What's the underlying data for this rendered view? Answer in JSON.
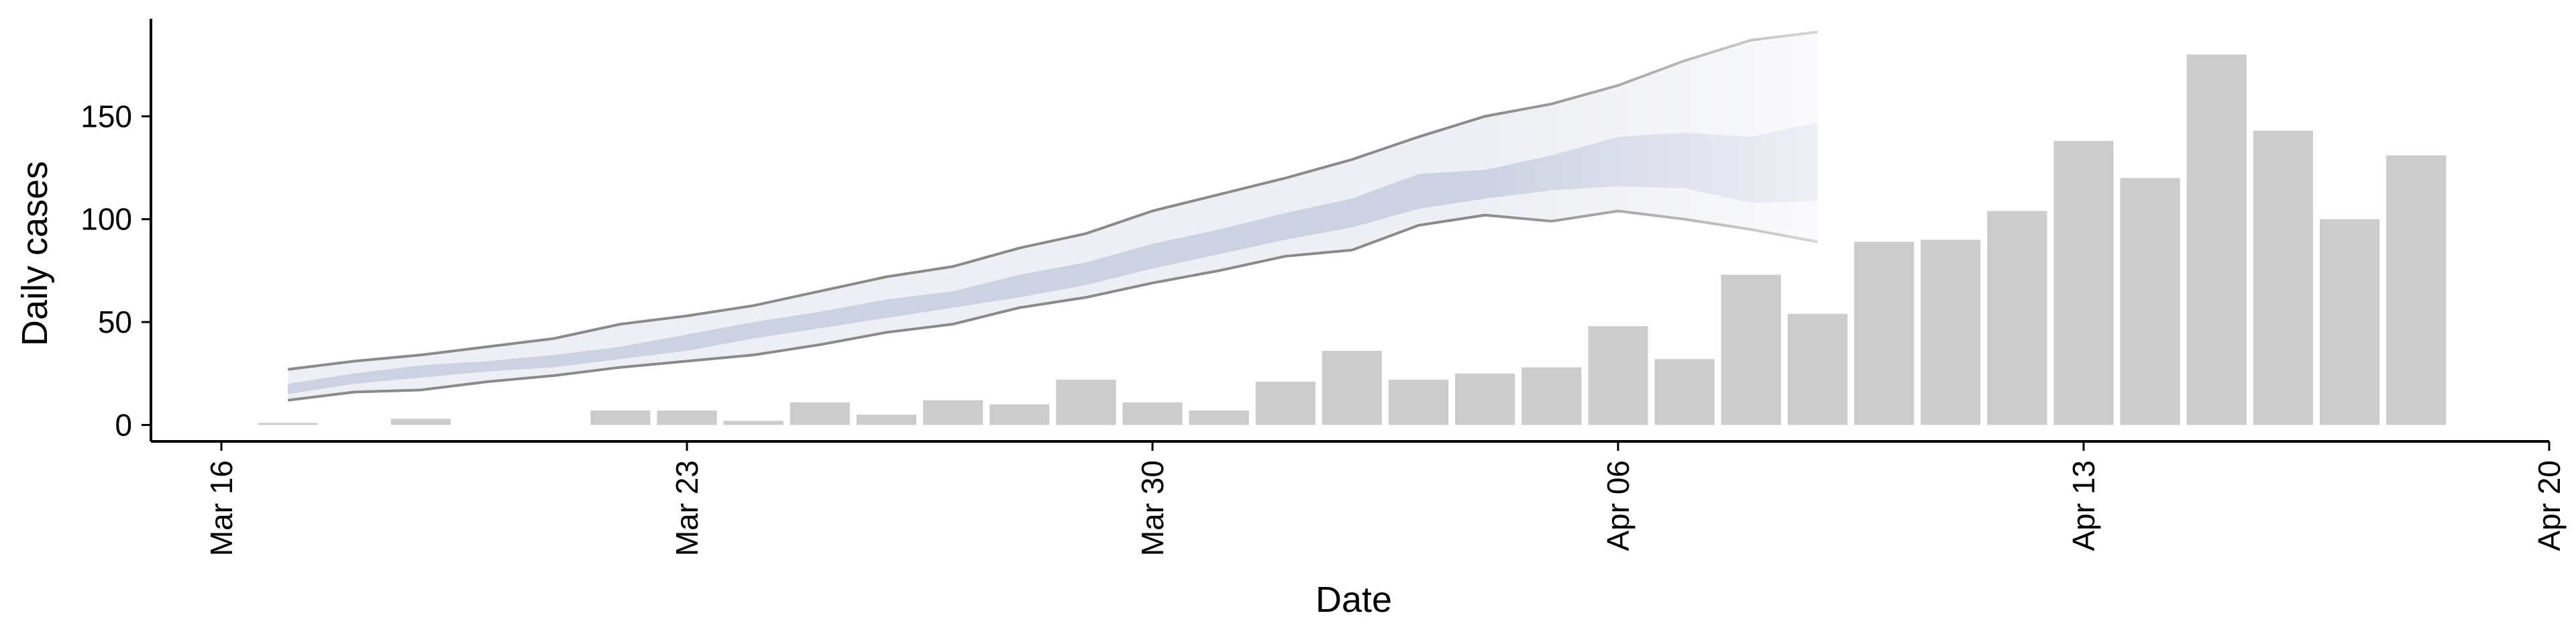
{
  "chart_data": {
    "type": "bar",
    "xlabel": "Date",
    "ylabel": "Daily cases",
    "xlim": [
      "2020-03-16",
      "2020-04-20"
    ],
    "ylim": [
      -8,
      200
    ],
    "x_ticks": [
      {
        "date": "2020-03-16",
        "label": "Mar 16"
      },
      {
        "date": "2020-03-23",
        "label": "Mar 23"
      },
      {
        "date": "2020-03-30",
        "label": "Mar 30"
      },
      {
        "date": "2020-04-06",
        "label": "Apr 06"
      },
      {
        "date": "2020-04-13",
        "label": "Apr 13"
      },
      {
        "date": "2020-04-20",
        "label": "Apr 20"
      }
    ],
    "y_ticks": [
      0,
      50,
      100,
      150
    ],
    "grid": false,
    "colors": {
      "bars": "#cccccc",
      "band_outer": "#eeeff4",
      "band_inner": "#cdd2e3",
      "band_edge": "#8a8a8a"
    },
    "observed": {
      "dates": [
        "2020-03-17",
        "2020-03-18",
        "2020-03-19",
        "2020-03-20",
        "2020-03-21",
        "2020-03-22",
        "2020-03-23",
        "2020-03-24",
        "2020-03-25",
        "2020-03-26",
        "2020-03-27",
        "2020-03-28",
        "2020-03-29",
        "2020-03-30",
        "2020-03-31",
        "2020-04-01",
        "2020-04-02",
        "2020-04-03",
        "2020-04-04",
        "2020-04-05",
        "2020-04-06",
        "2020-04-07",
        "2020-04-08",
        "2020-04-09",
        "2020-04-10",
        "2020-04-11",
        "2020-04-12",
        "2020-04-13",
        "2020-04-14",
        "2020-04-15",
        "2020-04-16",
        "2020-04-17",
        "2020-04-18"
      ],
      "values": [
        1,
        0,
        3,
        0,
        0,
        7,
        7,
        2,
        11,
        5,
        12,
        10,
        22,
        11,
        7,
        21,
        36,
        22,
        25,
        28,
        48,
        32,
        73,
        54,
        89,
        90,
        104,
        138,
        120,
        180,
        143,
        100,
        131
      ]
    },
    "forecast": {
      "dates": [
        "2020-03-17",
        "2020-03-18",
        "2020-03-19",
        "2020-03-20",
        "2020-03-21",
        "2020-03-22",
        "2020-03-23",
        "2020-03-24",
        "2020-03-25",
        "2020-03-26",
        "2020-03-27",
        "2020-03-28",
        "2020-03-29",
        "2020-03-30",
        "2020-03-31",
        "2020-04-01",
        "2020-04-02",
        "2020-04-03",
        "2020-04-04",
        "2020-04-05",
        "2020-04-06",
        "2020-04-07",
        "2020-04-08",
        "2020-04-09"
      ],
      "outer_low": [
        12,
        16,
        17,
        21,
        24,
        28,
        31,
        34,
        39,
        45,
        49,
        57,
        62,
        69,
        75,
        82,
        85,
        97,
        102,
        99,
        104,
        100,
        95,
        89
      ],
      "inner_low": [
        15,
        20,
        23,
        26,
        28,
        32,
        36,
        42,
        47,
        52,
        57,
        62,
        68,
        76,
        83,
        90,
        96,
        105,
        110,
        114,
        116,
        115,
        108,
        109
      ],
      "inner_high": [
        20,
        25,
        29,
        31,
        34,
        38,
        44,
        50,
        55,
        61,
        65,
        73,
        79,
        88,
        95,
        103,
        110,
        122,
        124,
        131,
        140,
        142,
        140,
        147
      ],
      "outer_high": [
        27,
        31,
        34,
        38,
        42,
        49,
        53,
        58,
        65,
        72,
        77,
        86,
        93,
        104,
        112,
        120,
        129,
        140,
        150,
        156,
        165,
        177,
        187,
        191
      ]
    }
  }
}
